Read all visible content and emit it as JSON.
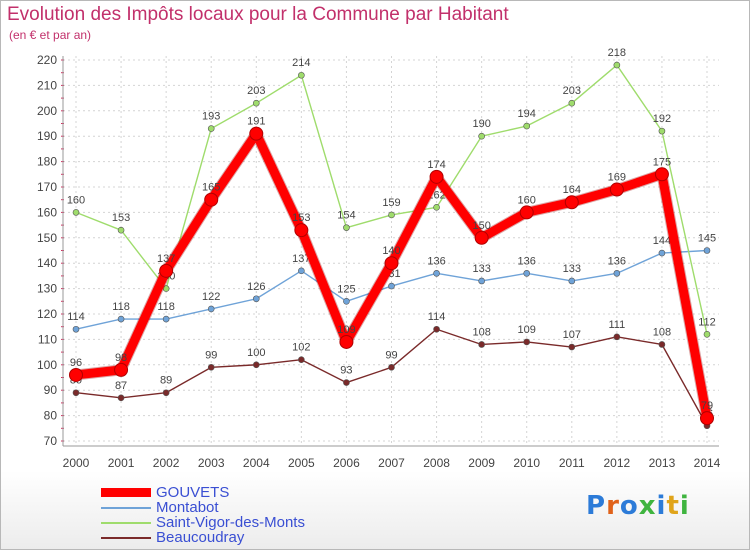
{
  "chart_data": {
    "type": "line",
    "title": "Evolution des Impôts locaux pour la Commune par Habitant",
    "subtitle": "(en € et par an)",
    "xlabel": "",
    "ylabel": "",
    "x": [
      "2000",
      "2001",
      "2002",
      "2003",
      "2004",
      "2005",
      "2006",
      "2007",
      "2008",
      "2009",
      "2010",
      "2011",
      "2012",
      "2013",
      "2014"
    ],
    "ylim": [
      70,
      220
    ],
    "yticks": [
      "70",
      "80",
      "90",
      "100",
      "110",
      "120",
      "130",
      "140",
      "150",
      "160",
      "170",
      "180",
      "190",
      "200",
      "210",
      "220"
    ],
    "grid": true,
    "legend_position": "bottom-left",
    "series": [
      {
        "name": "GOUVETS",
        "color": "#ff0000",
        "values": [
          96,
          98,
          137,
          165,
          191,
          153,
          109,
          140,
          174,
          150,
          160,
          164,
          169,
          175,
          79
        ],
        "labels": [
          "96",
          "98",
          "137",
          "165",
          "191",
          "153",
          "109",
          "140",
          "174",
          "150",
          "160",
          "164",
          "169",
          "175",
          "79"
        ]
      },
      {
        "name": "Montabot",
        "color": "#6fa3d8",
        "values": [
          114,
          118,
          118,
          122,
          126,
          137,
          125,
          131,
          136,
          133,
          136,
          133,
          136,
          144,
          145
        ],
        "labels": [
          "114",
          "118",
          "118",
          "122",
          "126",
          "137",
          "125",
          "131",
          "136",
          "133",
          "136",
          "133",
          "136",
          "144",
          "145"
        ]
      },
      {
        "name": "Saint-Vigor-des-Monts",
        "color": "#9fdc6c",
        "values": [
          160,
          153,
          130,
          193,
          203,
          214,
          154,
          159,
          162,
          190,
          194,
          203,
          218,
          192,
          112
        ],
        "labels": [
          "160",
          "153",
          "130",
          "193",
          "203",
          "214",
          "154",
          "159",
          "162",
          "190",
          "194",
          "203",
          "218",
          "192",
          "112"
        ]
      },
      {
        "name": "Beaucoudray",
        "color": "#7a2a2a",
        "values": [
          89,
          87,
          89,
          99,
          100,
          102,
          93,
          99,
          114,
          108,
          109,
          107,
          111,
          108,
          76
        ],
        "labels": [
          "89",
          "87",
          "89",
          "99",
          "100",
          "102",
          "93",
          "99",
          "114",
          "108",
          "109",
          "107",
          "111",
          "108",
          "76"
        ]
      }
    ]
  },
  "logo": {
    "text": "Proxiti",
    "colors": [
      "#2c7bd8",
      "#e0621a",
      "#2c7bd8",
      "#3fb43f",
      "#2c7bd8",
      "#e0a41a",
      "#3fb43f"
    ]
  }
}
